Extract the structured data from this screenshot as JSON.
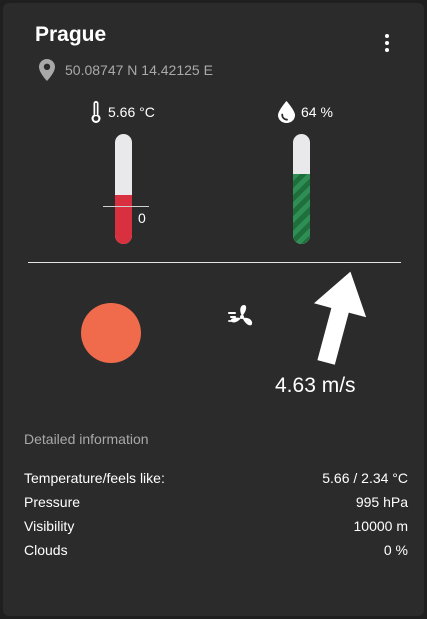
{
  "city": "Prague",
  "coordinates": "50.08747 N 14.42125 E",
  "temperature": {
    "value_label": "5.66 °C",
    "level_fraction": 0.45,
    "zero_label": "0",
    "fill_color": "#d8303e"
  },
  "humidity": {
    "value_label": "64 %",
    "level_fraction": 0.64,
    "fill_color": "#2f8e54"
  },
  "sun_color": "#ef6b4b",
  "wind": {
    "speed_label": "4.63 m/s",
    "direction_deg": 15
  },
  "details": {
    "title": "Detailed information",
    "rows": [
      {
        "label": "Temperature/feels like:",
        "value": "5.66 / 2.34 °C"
      },
      {
        "label": "Pressure",
        "value": "995 hPa"
      },
      {
        "label": "Visibility",
        "value": "10000 m"
      },
      {
        "label": "Clouds",
        "value": "0 %"
      }
    ]
  },
  "icons": [
    "location-pin-icon",
    "thermometer-icon",
    "water-drop-icon",
    "fan-icon",
    "wind-direction-arrow-icon",
    "more-vert-icon"
  ]
}
